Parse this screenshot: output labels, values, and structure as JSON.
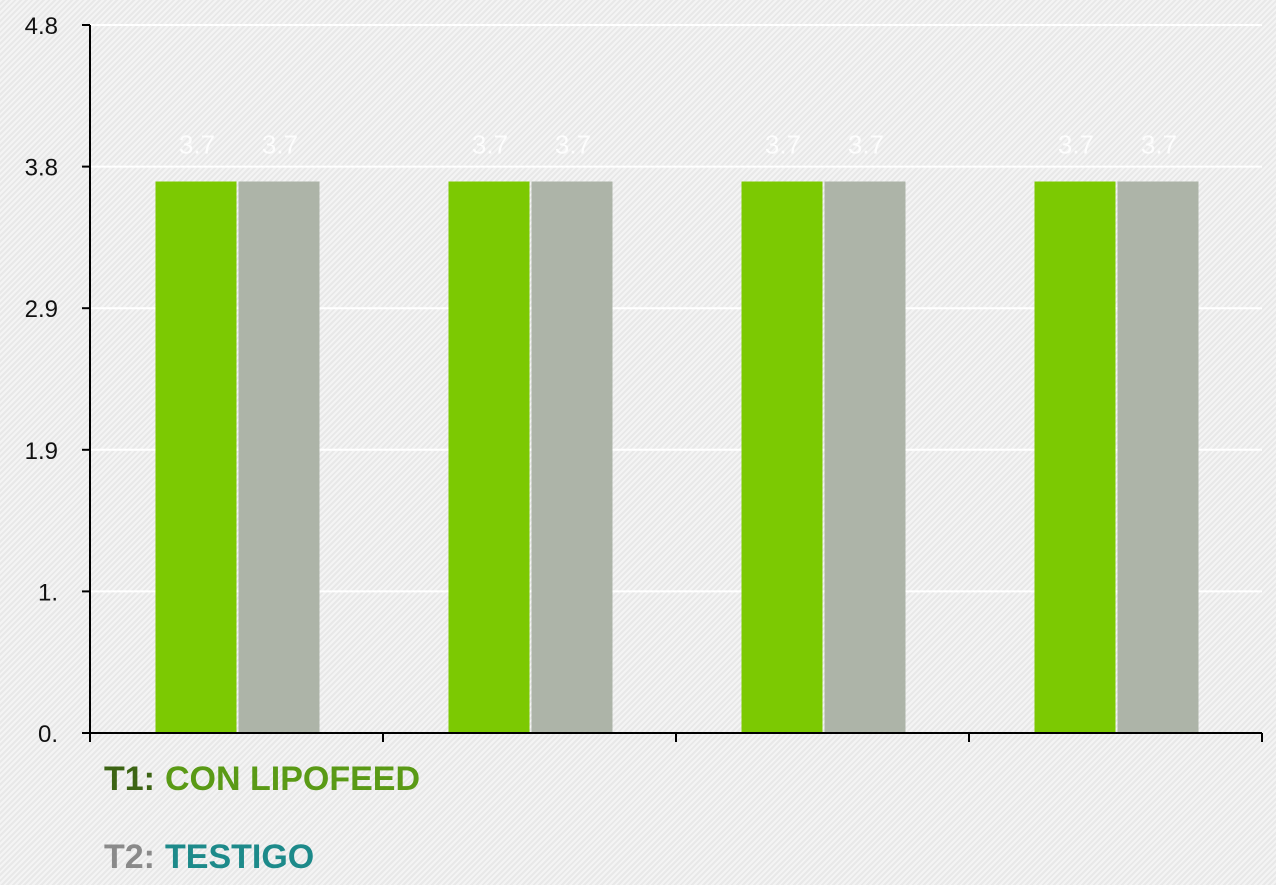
{
  "chart_data": {
    "type": "bar",
    "categories": [
      "",
      "",
      "",
      ""
    ],
    "series": [
      {
        "name": "T1: CON LIPOFEED",
        "values": [
          3.7,
          3.7,
          3.7,
          3.7
        ],
        "color": "#7cc902"
      },
      {
        "name": "T2: TESTIGO",
        "values": [
          3.7,
          3.7,
          3.7,
          3.7
        ],
        "color": "#adb4a8"
      }
    ],
    "data_labels": [
      "3.7",
      "3.7",
      "3.7",
      "3.7",
      "3.7",
      "3.7",
      "3.7",
      "3.7"
    ],
    "yticks": [
      0,
      0.95,
      1.9,
      2.85,
      3.8,
      4.75
    ],
    "ytick_labels": [
      "0.",
      "1.",
      "1.9",
      "2.9",
      "3.8",
      "4.8"
    ],
    "ylim": [
      0,
      4.75
    ],
    "title": "",
    "xlabel": "",
    "ylabel": "",
    "grid": true
  },
  "legend": {
    "t1": {
      "code": "T1:",
      "text": "CON LIPOFEED",
      "code_color": "#3c6414",
      "text_color": "#5a9a16"
    },
    "t2": {
      "code": "T2:",
      "text": "TESTIGO",
      "code_color": "#8a8a8a",
      "text_color": "#1d8a8a"
    }
  }
}
